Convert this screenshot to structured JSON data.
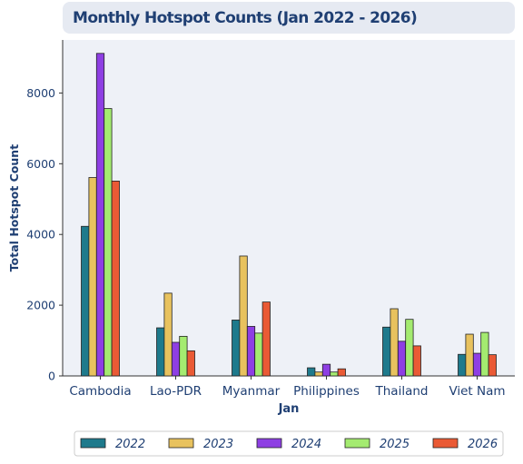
{
  "chart_data": {
    "type": "bar",
    "title": "Monthly Hotspot Counts (Jan 2022 - 2026)",
    "xlabel": "Jan",
    "ylabel": "Total Hotspot Count",
    "ylim": [
      0,
      9500
    ],
    "yticks": [
      0,
      2000,
      4000,
      6000,
      8000
    ],
    "categories": [
      "Cambodia",
      "Lao-PDR",
      "Myanmar",
      "Philippines",
      "Thailand",
      "Viet Nam"
    ],
    "series": [
      {
        "name": "2022",
        "color": "#1e7a8c",
        "values": [
          4230,
          1360,
          1580,
          230,
          1380,
          610
        ]
      },
      {
        "name": "2023",
        "color": "#e8c25e",
        "values": [
          5610,
          2340,
          3390,
          110,
          1900,
          1180
        ]
      },
      {
        "name": "2024",
        "color": "#8e3fe3",
        "values": [
          9120,
          950,
          1400,
          330,
          980,
          640
        ]
      },
      {
        "name": "2025",
        "color": "#a4eb70",
        "values": [
          7560,
          1120,
          1210,
          110,
          1600,
          1230
        ]
      },
      {
        "name": "2026",
        "color": "#ea5a35",
        "values": [
          5510,
          710,
          2090,
          200,
          850,
          600
        ]
      }
    ],
    "grid": false,
    "legend": "bottom"
  }
}
